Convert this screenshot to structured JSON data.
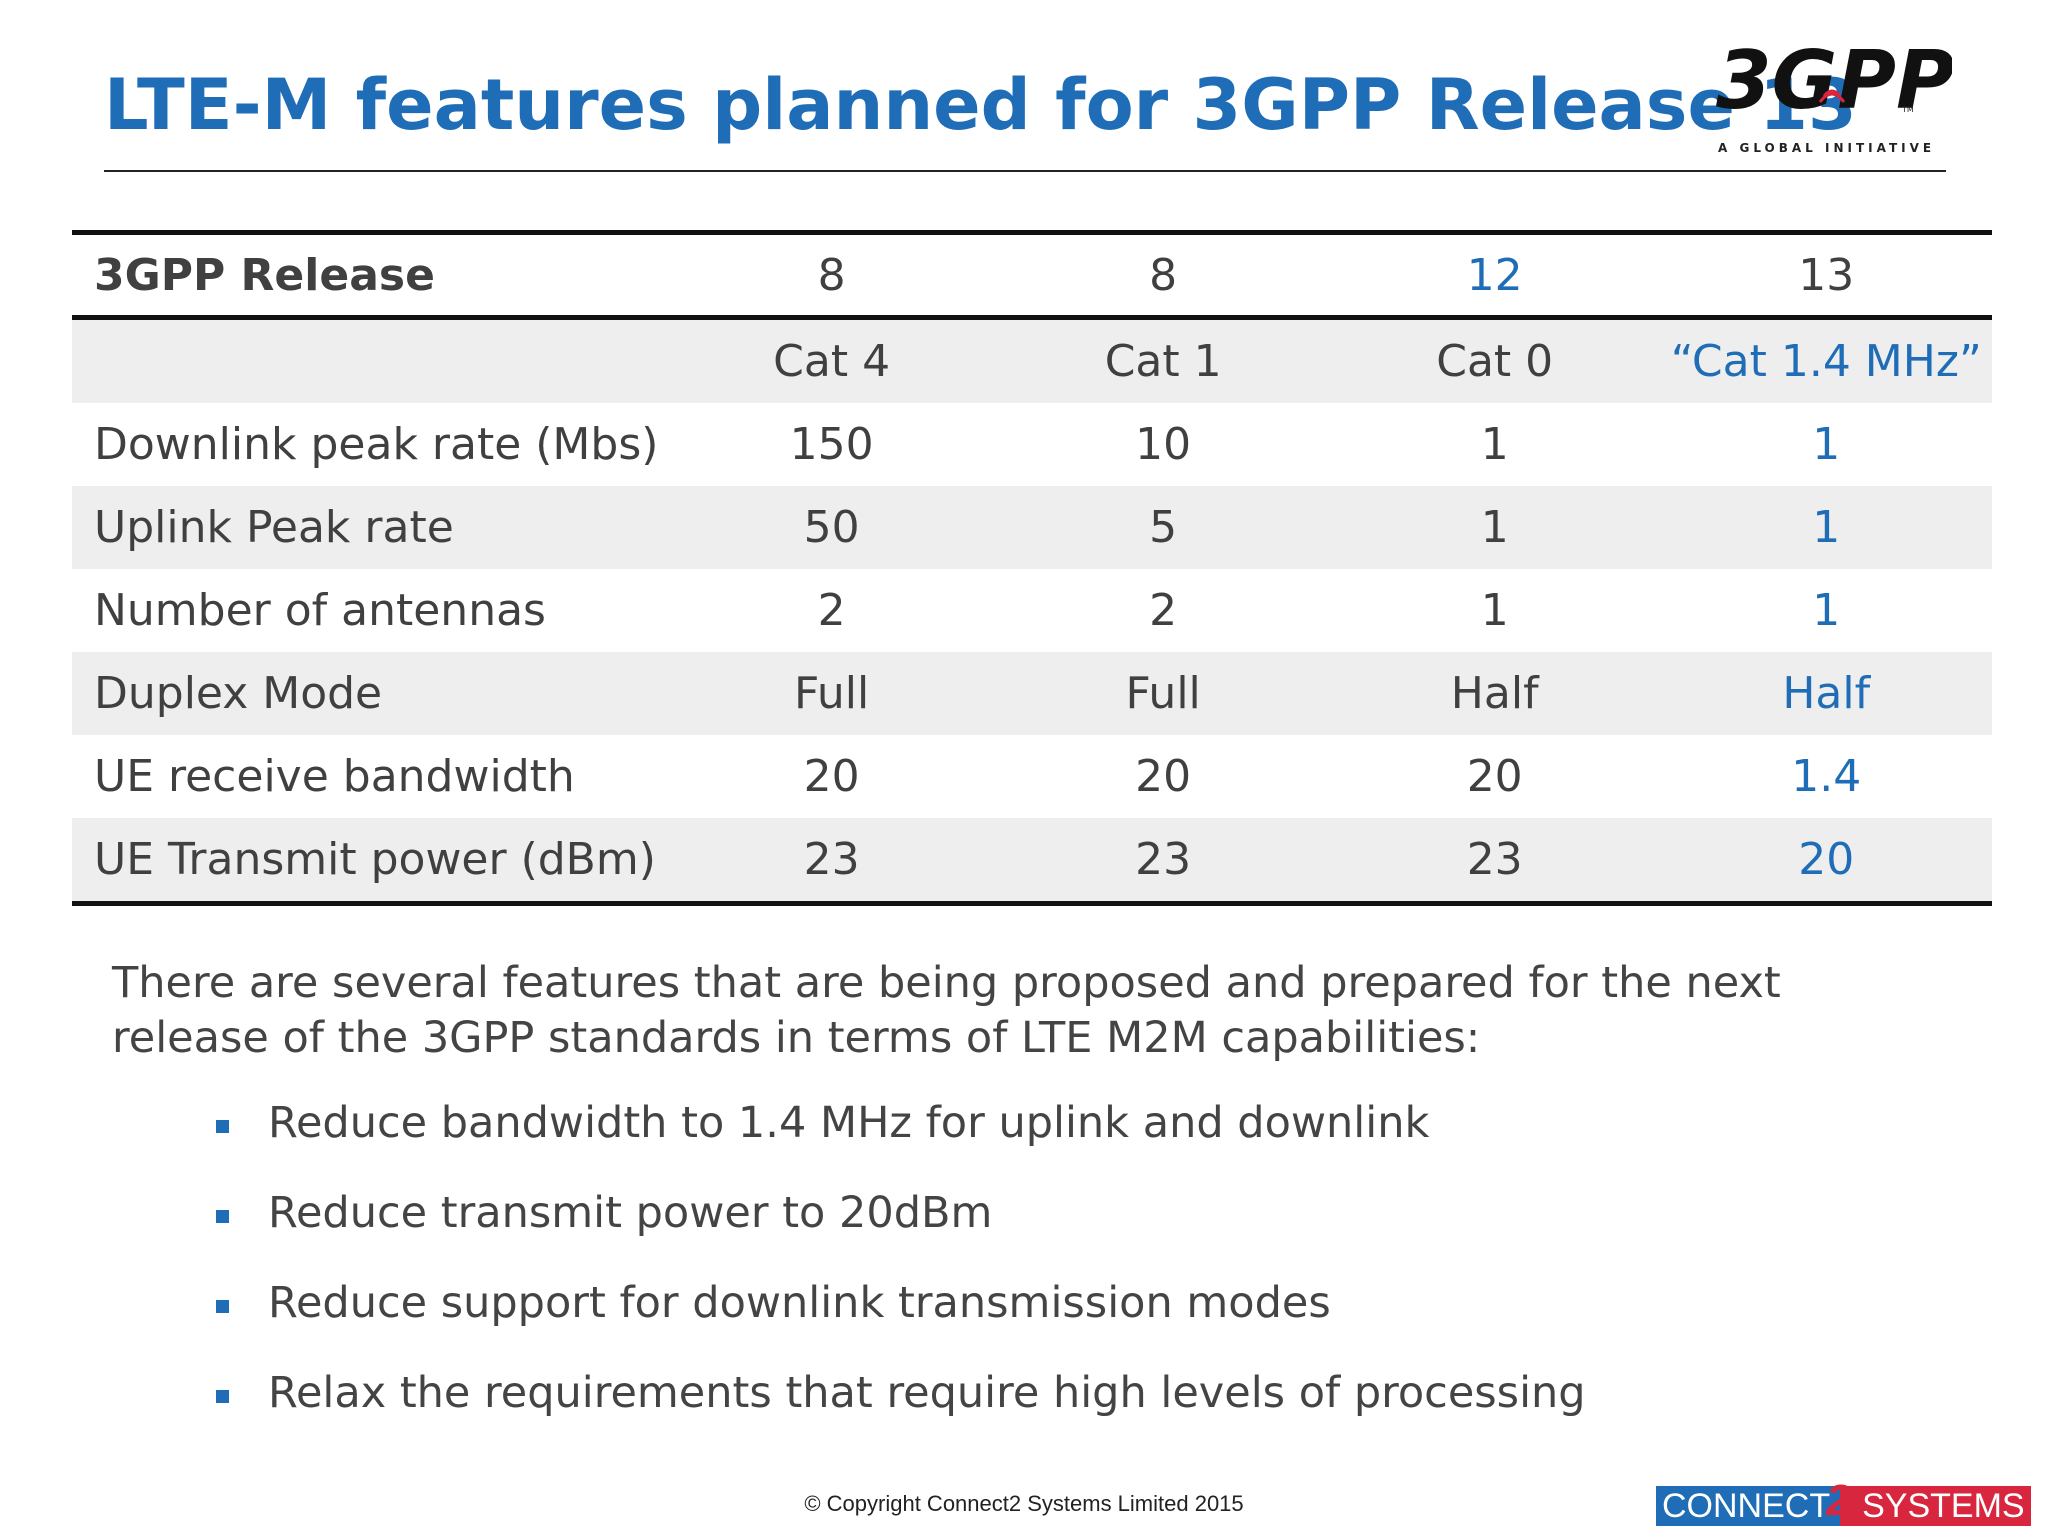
{
  "title": "LTE-M features planned for 3GPP Release 13",
  "logo": {
    "wordmark": "3GPP",
    "tagline": "A GLOBAL INITIATIVE",
    "tm": "TM"
  },
  "table": {
    "header": {
      "label": "3GPP Release",
      "values": [
        "8",
        "8",
        "12",
        "13"
      ]
    },
    "rows": [
      {
        "label": "",
        "values": [
          "Cat 4",
          "Cat 1",
          "Cat 0",
          "“Cat 1.4 MHz”"
        ]
      },
      {
        "label": "Downlink peak rate (Mbs)",
        "values": [
          "150",
          "10",
          "1",
          "1"
        ]
      },
      {
        "label": "Uplink Peak rate",
        "values": [
          "50",
          "5",
          "1",
          "1"
        ]
      },
      {
        "label": "Number of antennas",
        "values": [
          "2",
          "2",
          "1",
          "1"
        ]
      },
      {
        "label": "Duplex Mode",
        "values": [
          "Full",
          "Full",
          "Half",
          "Half"
        ]
      },
      {
        "label": "UE receive bandwidth",
        "values": [
          "20",
          "20",
          "20",
          "1.4"
        ]
      },
      {
        "label": "UE Transmit power (dBm)",
        "values": [
          "23",
          "23",
          "23",
          "20"
        ]
      }
    ]
  },
  "intro": "There are several features that are being proposed and prepared for the next release of the 3GPP standards in terms of LTE M2M capabilities:",
  "bullets": [
    "Reduce bandwidth to 1.4 MHz for uplink and downlink",
    "Reduce transmit power to 20dBm",
    "Reduce support for downlink transmission modes",
    "Relax the requirements that require high levels of processing"
  ],
  "copyright": "© Copyright Connect2 Systems Limited 2015",
  "footer_logo": {
    "left": "CONNECT",
    "two": "2",
    "right": "SYSTEMS"
  },
  "colors": {
    "accent": "#1f6db6",
    "brand_red": "#d7263d"
  }
}
